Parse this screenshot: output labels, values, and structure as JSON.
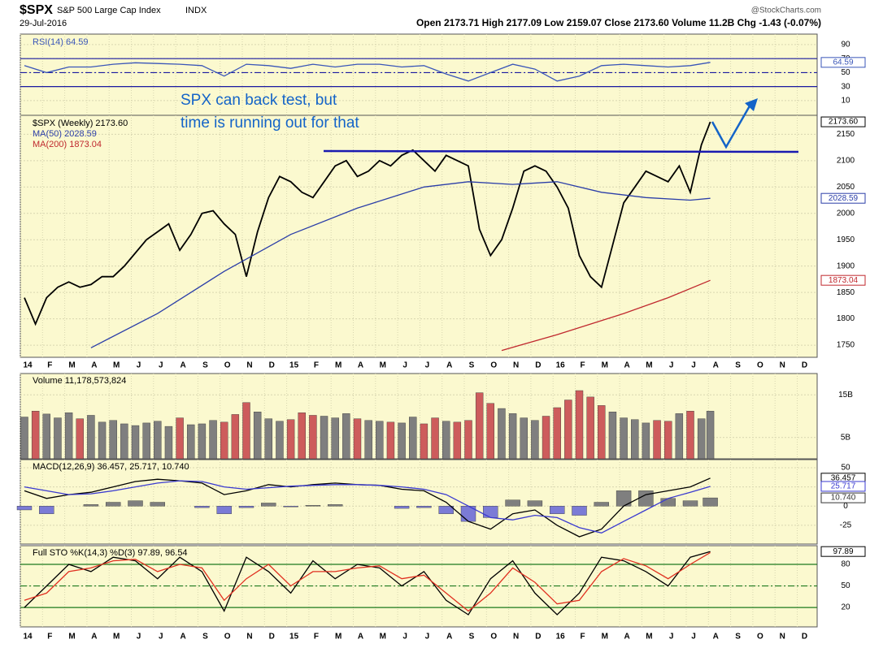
{
  "header": {
    "symbol": "$SPX",
    "name": "S&P 500 Large Cap Index",
    "exchange": "INDX",
    "date": "29-Jul-2016",
    "quote": "Open 2173.71  High 2177.09  Low 2159.07  Close 2173.60  Volume 11.2B  Chg -1.43 (-0.07%)",
    "source": "@StockCharts.com"
  },
  "annotation": [
    "SPX can back test, but",
    "time is running out for that"
  ],
  "months": [
    "14",
    "F",
    "M",
    "A",
    "M",
    "J",
    "J",
    "A",
    "S",
    "O",
    "N",
    "D",
    "15",
    "F",
    "M",
    "A",
    "M",
    "J",
    "J",
    "A",
    "S",
    "O",
    "N",
    "D",
    "16",
    "F",
    "M",
    "A",
    "M",
    "J",
    "J",
    "A",
    "S",
    "O",
    "N",
    "D"
  ],
  "chart_data": [
    {
      "type": "line",
      "ylim": [
        -11,
        105
      ],
      "yticks": [
        10,
        30,
        50,
        70,
        90
      ],
      "levels": [
        70,
        50,
        30
      ],
      "level_color": "#1a1aa0",
      "x": [
        0,
        1,
        2,
        3,
        4,
        5,
        6,
        7,
        8,
        9,
        10,
        11,
        12,
        13,
        14,
        15,
        16,
        17,
        18,
        19,
        20,
        21,
        22,
        23,
        24,
        25,
        26,
        27,
        28,
        29,
        30,
        30.9
      ],
      "series": [
        {
          "name": "RSI(14) 64.59",
          "color": "#3a56b8",
          "last_label": "64.59",
          "values": [
            60,
            50,
            58,
            58,
            62,
            64,
            63,
            62,
            60,
            45,
            62,
            60,
            56,
            62,
            58,
            62,
            62,
            58,
            60,
            48,
            38,
            50,
            62,
            55,
            38,
            45,
            60,
            62,
            60,
            58,
            60,
            64.59
          ]
        }
      ]
    },
    {
      "type": "line",
      "ylim": [
        1727,
        2186
      ],
      "yticks": [
        1750,
        1800,
        1850,
        1900,
        1950,
        2000,
        2050,
        2100,
        2150
      ],
      "x": [
        0,
        0.5,
        1,
        1.5,
        2,
        2.5,
        3,
        3.5,
        4,
        4.5,
        5,
        5.5,
        6,
        6.5,
        7,
        7.5,
        8,
        8.5,
        9,
        9.5,
        10,
        10.5,
        11,
        11.5,
        12,
        12.5,
        13,
        13.5,
        14,
        14.5,
        15,
        15.5,
        16,
        16.5,
        17,
        17.5,
        18,
        18.5,
        19,
        19.5,
        20,
        20.5,
        21,
        21.5,
        22,
        22.5,
        23,
        23.5,
        24,
        24.5,
        25,
        25.5,
        26,
        26.5,
        27,
        27.5,
        28,
        28.5,
        29,
        29.5,
        30,
        30.5,
        30.9
      ],
      "series": [
        {
          "name": "$SPX (Weekly) 2173.60",
          "color": "#000000",
          "last_label": "2173.60",
          "values": [
            1840,
            1790,
            1840,
            1860,
            1870,
            1860,
            1865,
            1880,
            1880,
            1900,
            1925,
            1950,
            1965,
            1980,
            1930,
            1960,
            2000,
            2005,
            1980,
            1960,
            1880,
            1965,
            2030,
            2070,
            2060,
            2040,
            2030,
            2060,
            2090,
            2100,
            2070,
            2080,
            2100,
            2090,
            2110,
            2120,
            2100,
            2080,
            2110,
            2100,
            2090,
            1970,
            1920,
            1950,
            2010,
            2080,
            2090,
            2080,
            2050,
            2010,
            1920,
            1880,
            1860,
            1940,
            2020,
            2050,
            2080,
            2070,
            2060,
            2090,
            2040,
            2130,
            2173.6
          ]
        },
        {
          "name": "MA(50) 2028.59",
          "color": "#2b3ea8",
          "last_label": "2028.59",
          "x": [
            3,
            6,
            9,
            12,
            15,
            18,
            20,
            22,
            24,
            26,
            28,
            30,
            30.9
          ],
          "values": [
            1745,
            1810,
            1890,
            1960,
            2010,
            2050,
            2060,
            2055,
            2060,
            2040,
            2030,
            2025,
            2028.59
          ]
        },
        {
          "name": "MA(200) 1873.04",
          "color": "#c0282e",
          "last_label": "1873.04",
          "x": [
            21.5,
            24,
            27,
            29,
            30.9
          ],
          "values": [
            1740,
            1770,
            1810,
            1840,
            1873.04
          ]
        }
      ]
    },
    {
      "type": "bar",
      "legend": "Volume 11,178,573,824",
      "ylim": [
        0,
        20000000000.0
      ],
      "yticks": [
        {
          "value": 5000000000.0,
          "label": "5B"
        },
        {
          "value": 15000000000.0,
          "label": "15B"
        }
      ],
      "x": [
        0,
        0.5,
        1,
        1.5,
        2,
        2.5,
        3,
        3.5,
        4,
        4.5,
        5,
        5.5,
        6,
        6.5,
        7,
        7.5,
        8,
        8.5,
        9,
        9.5,
        10,
        10.5,
        11,
        11.5,
        12,
        12.5,
        13,
        13.5,
        14,
        14.5,
        15,
        15.5,
        16,
        16.5,
        17,
        17.5,
        18,
        18.5,
        19,
        19.5,
        20,
        20.5,
        21,
        21.5,
        22,
        22.5,
        23,
        23.5,
        24,
        24.5,
        25,
        25.5,
        26,
        26.5,
        27,
        27.5,
        28,
        28.5,
        29,
        29.5,
        30,
        30.5,
        30.9
      ],
      "series": [
        {
          "up_color": "#7f7f7f",
          "down_color": "#cd5c5c",
          "values": [
            9800000000.0,
            11200000000.0,
            10500000000.0,
            9600000000.0,
            10800000000.0,
            9400000000.0,
            10200000000.0,
            8600000000.0,
            9000000000.0,
            8200000000.0,
            7800000000.0,
            8400000000.0,
            8800000000.0,
            7600000000.0,
            9600000000.0,
            8000000000.0,
            8200000000.0,
            9000000000.0,
            8600000000.0,
            10400000000.0,
            13200000000.0,
            11000000000.0,
            9400000000.0,
            8800000000.0,
            9200000000.0,
            10800000000.0,
            10200000000.0,
            10000000000.0,
            9600000000.0,
            10600000000.0,
            9400000000.0,
            9000000000.0,
            8800000000.0,
            8600000000.0,
            8400000000.0,
            9800000000.0,
            8200000000.0,
            9600000000.0,
            8800000000.0,
            8600000000.0,
            9000000000.0,
            15500000000.0,
            13000000000.0,
            11800000000.0,
            10600000000.0,
            9600000000.0,
            9000000000.0,
            10000000000.0,
            12000000000.0,
            13800000000.0,
            16000000000.0,
            14500000000.0,
            12500000000.0,
            11000000000.0,
            9600000000.0,
            9200000000.0,
            8400000000.0,
            9000000000.0,
            8800000000.0,
            10600000000.0,
            11200000000.0,
            9400000000.0,
            11178573824.0
          ]
        }
      ]
    },
    {
      "type": "line",
      "legend": "MACD(12,26,9) 36.457, 25.717, 10.740",
      "ylim": [
        -49.5,
        60.6
      ],
      "yticks": [
        -25,
        0,
        25,
        50
      ],
      "x": [
        0,
        1,
        2,
        3,
        4,
        5,
        6,
        7,
        8,
        9,
        10,
        11,
        12,
        13,
        14,
        15,
        16,
        17,
        18,
        19,
        20,
        21,
        22,
        23,
        24,
        25,
        26,
        27,
        28,
        29,
        30,
        30.9
      ],
      "series": [
        {
          "kind": "bar",
          "color": "#7f7f7f",
          "negative_color": "#7b7bd6",
          "last_label": "10.740",
          "values": [
            -5,
            -10,
            0,
            2,
            5,
            7,
            5,
            0,
            -2,
            -10,
            -2,
            4,
            -1,
            1,
            2,
            0,
            0,
            -3,
            -2,
            -10,
            -20,
            -15,
            8,
            7,
            -10,
            -12,
            5,
            20,
            20,
            10,
            7,
            10.74
          ]
        },
        {
          "color": "#000000",
          "last_label": "36.457",
          "values": [
            20,
            10,
            15,
            18,
            25,
            32,
            35,
            33,
            30,
            15,
            20,
            28,
            25,
            28,
            30,
            28,
            27,
            22,
            20,
            5,
            -20,
            -30,
            -10,
            -5,
            -25,
            -40,
            -30,
            0,
            15,
            20,
            25,
            36.457
          ]
        },
        {
          "color": "#3a3ad0",
          "last_label": "25.717",
          "values": [
            25,
            20,
            15,
            16,
            20,
            25,
            30,
            33,
            32,
            25,
            22,
            24,
            26,
            27,
            28,
            28,
            27,
            25,
            22,
            15,
            0,
            -15,
            -18,
            -12,
            -15,
            -28,
            -35,
            -20,
            -5,
            10,
            18,
            25.717
          ]
        }
      ]
    },
    {
      "type": "line",
      "legend": "Full STO %K(14,3) %D(3) 97.89, 96.54",
      "ylim": [
        -7,
        106
      ],
      "yticks": [
        20,
        50,
        80
      ],
      "levels": [
        80,
        50,
        20
      ],
      "level_color": "#1e7a1e",
      "x": [
        0,
        1,
        2,
        3,
        4,
        5,
        6,
        7,
        8,
        9,
        10,
        11,
        12,
        13,
        14,
        15,
        16,
        17,
        18,
        19,
        20,
        21,
        22,
        23,
        24,
        25,
        26,
        27,
        28,
        29,
        30,
        30.9
      ],
      "series": [
        {
          "color": "#000000",
          "last_label": "97.89",
          "values": [
            20,
            50,
            80,
            70,
            90,
            85,
            60,
            90,
            70,
            15,
            90,
            70,
            40,
            85,
            60,
            80,
            75,
            50,
            70,
            30,
            10,
            60,
            85,
            40,
            10,
            40,
            90,
            85,
            70,
            50,
            90,
            97.89
          ]
        },
        {
          "color": "#e03020",
          "values": [
            30,
            40,
            70,
            75,
            85,
            87,
            70,
            80,
            75,
            30,
            60,
            80,
            50,
            70,
            70,
            75,
            78,
            60,
            65,
            40,
            15,
            40,
            75,
            55,
            25,
            30,
            70,
            88,
            78,
            60,
            80,
            96.54
          ]
        }
      ]
    }
  ]
}
